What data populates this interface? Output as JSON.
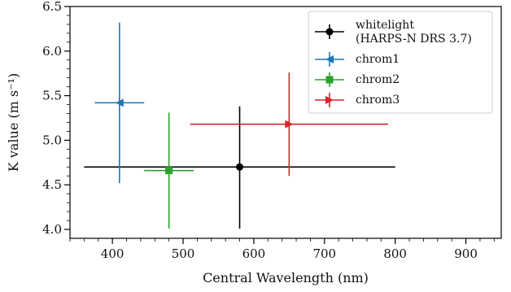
{
  "chart_data": {
    "type": "scatter",
    "title": "",
    "xlabel": "Central Wavelength (nm)",
    "ylabel": "K value (m s⁻¹)",
    "xlim": [
      340,
      950
    ],
    "ylim": [
      3.9,
      6.5
    ],
    "xticks": [
      400,
      500,
      600,
      700,
      800,
      900
    ],
    "yticks": [
      4.0,
      4.5,
      5.0,
      5.5,
      6.0,
      6.5
    ],
    "x_tick_labels": [
      "400",
      "500",
      "600",
      "700",
      "800",
      "900"
    ],
    "y_tick_labels": [
      "4.0",
      "4.5",
      "5.0",
      "5.5",
      "6.0",
      "6.5"
    ],
    "grid": false,
    "legend_position": "top-right",
    "series": [
      {
        "name_lines": [
          "whitelight",
          "(HARPS-N DRS 3.7)"
        ],
        "color": "#000000",
        "marker": "circle",
        "x": 580,
        "y": 4.7,
        "xerr": [
          220,
          220
        ],
        "yerr": [
          0.69,
          0.68
        ]
      },
      {
        "name_lines": [
          "chrom1"
        ],
        "color": "#1f77b4",
        "marker": "triangle-left",
        "x": 410,
        "y": 5.42,
        "xerr": [
          35,
          35
        ],
        "yerr": [
          0.9,
          0.9
        ]
      },
      {
        "name_lines": [
          "chrom2"
        ],
        "color": "#2ca02c",
        "marker": "square",
        "x": 480,
        "y": 4.66,
        "xerr": [
          35,
          35
        ],
        "yerr": [
          0.65,
          0.65
        ]
      },
      {
        "name_lines": [
          "chrom3"
        ],
        "color": "#d62728",
        "marker": "triangle-right",
        "x": 650,
        "y": 5.18,
        "xerr": [
          140,
          140
        ],
        "yerr": [
          0.58,
          0.58
        ]
      }
    ]
  }
}
